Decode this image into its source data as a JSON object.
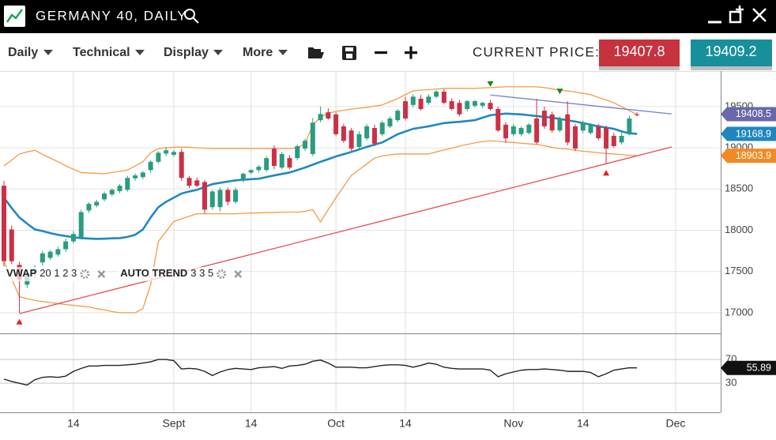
{
  "header": {
    "title": "GERMANY 40, DAILY"
  },
  "toolbar": {
    "menus": [
      "Daily",
      "Technical",
      "Display",
      "More"
    ],
    "price_label": "CURRENT PRICE:",
    "bid": {
      "value": 19407.8,
      "color": "#c6323e"
    },
    "ask": {
      "value": 19409.2,
      "color": "#17909c"
    }
  },
  "chart_data": [
    {
      "type": "candlestick",
      "categories": [
        null,
        null,
        null,
        null,
        null,
        null,
        null,
        null,
        null,
        "14",
        null,
        null,
        null,
        null,
        null,
        null,
        null,
        null,
        null,
        null,
        null,
        null,
        "Sept",
        null,
        null,
        null,
        null,
        null,
        null,
        null,
        null,
        null,
        "14",
        null,
        null,
        null,
        null,
        null,
        null,
        null,
        null,
        null,
        null,
        "Oct",
        null,
        null,
        null,
        null,
        null,
        null,
        null,
        null,
        "14",
        null,
        null,
        null,
        null,
        null,
        null,
        null,
        null,
        null,
        null,
        null,
        null,
        null,
        "Nov",
        null,
        null,
        null,
        null,
        null,
        null,
        null,
        null,
        "14",
        null,
        null,
        null,
        null,
        null,
        null,
        null,
        null,
        null,
        null,
        null,
        "Dec"
      ],
      "open": [
        18540,
        18010,
        17580,
        17340,
        17480,
        17610,
        17665,
        17705,
        17770,
        17865,
        17915,
        18240,
        18300,
        18375,
        18435,
        18475,
        18490,
        18630,
        18645,
        18730,
        18830,
        18930,
        18915,
        18950,
        18635,
        18605,
        18585,
        18280,
        18280,
        18490,
        18345,
        18605,
        18700,
        18730,
        18730,
        18990,
        18760,
        18875,
        18875,
        18990,
        18925,
        19335,
        19430,
        19405,
        19260,
        19210,
        19010,
        19115,
        19240,
        19165,
        19260,
        19335,
        19565,
        19520,
        19595,
        19545,
        19620,
        19680,
        19565,
        19545,
        19470,
        19510,
        19510,
        19545,
        19470,
        19280,
        19165,
        19165,
        19180,
        19355,
        19450,
        19405,
        19210,
        19405,
        19260,
        19210,
        19180,
        19260,
        19240,
        19145,
        19065,
        19180,
        19405,
        null,
        null,
        null,
        null,
        null
      ],
      "high": [
        18600,
        18060,
        17620,
        17530,
        17580,
        17750,
        17760,
        17800,
        17900,
        17990,
        18250,
        18340,
        18370,
        18470,
        18510,
        18560,
        18660,
        18690,
        18720,
        18850,
        18960,
        19010,
        18970,
        18990,
        18660,
        18640,
        18610,
        18490,
        18520,
        18520,
        18520,
        18700,
        18740,
        18790,
        18900,
        19030,
        18950,
        18910,
        19040,
        19110,
        19360,
        19500,
        19480,
        19430,
        19290,
        19240,
        19200,
        19290,
        19280,
        19330,
        19380,
        19470,
        19620,
        19650,
        19640,
        19650,
        19700,
        19710,
        19600,
        19580,
        19580,
        19580,
        19560,
        19580,
        19500,
        19310,
        19290,
        19260,
        19300,
        19595,
        19500,
        19440,
        19380,
        19565,
        19290,
        19330,
        19300,
        19290,
        19270,
        19180,
        19190,
        19390,
        19430,
        null,
        null,
        null,
        null,
        null
      ],
      "low": [
        17560,
        17590,
        17000,
        17300,
        17420,
        17570,
        17640,
        17680,
        17740,
        17840,
        17890,
        18210,
        18280,
        18350,
        18410,
        18450,
        18470,
        18600,
        18620,
        18700,
        18810,
        18900,
        18890,
        18600,
        18510,
        18520,
        18200,
        18250,
        18230,
        18300,
        18320,
        18580,
        18680,
        18700,
        18710,
        18740,
        18740,
        18740,
        18850,
        18960,
        18900,
        19310,
        19340,
        19140,
        19060,
        18960,
        18990,
        19090,
        19020,
        19140,
        19240,
        19310,
        19330,
        19490,
        19450,
        19520,
        19600,
        19530,
        19450,
        19380,
        19440,
        19490,
        19480,
        19450,
        19190,
        19060,
        19140,
        19140,
        19160,
        19040,
        19230,
        19180,
        19190,
        19030,
        18960,
        19180,
        19160,
        19090,
        18810,
        19000,
        19040,
        19150,
        19380,
        null,
        null,
        null,
        null,
        null
      ],
      "close": [
        17625,
        17625,
        17400,
        17480,
        17530,
        17720,
        17740,
        17770,
        17865,
        17955,
        18220,
        18320,
        18345,
        18445,
        18490,
        18540,
        18635,
        18665,
        18700,
        18830,
        18940,
        18970,
        18950,
        18635,
        18540,
        18540,
        18250,
        18470,
        18490,
        18345,
        18490,
        18685,
        18730,
        18770,
        18875,
        18780,
        18925,
        18760,
        19020,
        19085,
        19305,
        19410,
        19355,
        19165,
        19085,
        18990,
        19165,
        19260,
        19050,
        19305,
        19355,
        19450,
        19355,
        19620,
        19470,
        19620,
        19680,
        19545,
        19470,
        19405,
        19565,
        19565,
        19545,
        19470,
        19210,
        19115,
        19260,
        19240,
        19280,
        19065,
        19260,
        19210,
        19355,
        19065,
        18990,
        19305,
        19280,
        19115,
        18990,
        19020,
        19145,
        19355,
        19395,
        null,
        null,
        null,
        null,
        null
      ],
      "up_color": "#2a9c80",
      "down_color": "#cc3046",
      "overlays": [
        {
          "color": "#f59a45",
          "width": 1.3,
          "values": [
            18780,
            18850,
            18925,
            18950,
            18970,
            18920,
            18875,
            18830,
            18780,
            18740,
            18700,
            18695,
            18690,
            18685,
            18700,
            18715,
            18730,
            18780,
            18830,
            18940,
            18990,
            19000,
            19005,
            19010,
            19005,
            19000,
            18995,
            18990,
            18990,
            18990,
            18990,
            18990,
            18990,
            18990,
            18990,
            18990,
            18990,
            18990,
            19000,
            19050,
            19280,
            19370,
            19420,
            19440,
            19455,
            19470,
            19480,
            19490,
            19505,
            19520,
            19560,
            19595,
            19645,
            19690,
            19700,
            19705,
            19712,
            19720,
            19720,
            19720,
            19720,
            19720,
            19725,
            19730,
            19735,
            19740,
            19740,
            19740,
            19740,
            19740,
            19730,
            19715,
            19700,
            19690,
            19675,
            19660,
            19645,
            19610,
            19580,
            19545,
            19500,
            19450,
            19405,
            null,
            null,
            null,
            null,
            null
          ]
        },
        {
          "color": "#f59a45",
          "width": 1.3,
          "values": [
            17625,
            17410,
            17195,
            17170,
            17150,
            17135,
            17125,
            17110,
            17100,
            17090,
            17080,
            17070,
            17050,
            17035,
            17015,
            17000,
            17000,
            17000,
            17050,
            17340,
            17865,
            17985,
            18105,
            18140,
            18170,
            18200,
            18200,
            18200,
            18200,
            18200,
            18200,
            18205,
            18210,
            18210,
            18215,
            18215,
            18220,
            18220,
            18220,
            18230,
            18250,
            18100,
            18250,
            18395,
            18530,
            18665,
            18735,
            18805,
            18875,
            18900,
            18915,
            18925,
            18925,
            18925,
            18925,
            18925,
            18950,
            18975,
            18995,
            19020,
            19040,
            19060,
            19075,
            19085,
            19080,
            19070,
            19065,
            19055,
            19048,
            19040,
            19025,
            19005,
            18990,
            18985,
            18970,
            18958,
            18950,
            18940,
            18932,
            18925,
            18918,
            18910,
            18904,
            null,
            null,
            null,
            null,
            null
          ]
        },
        {
          "color": "#1f88c2",
          "width": 2.6,
          "values": [
            18395,
            18270,
            18155,
            18080,
            18010,
            17990,
            17965,
            17945,
            17930,
            17915,
            17905,
            17900,
            17895,
            17898,
            17902,
            17905,
            17920,
            17945,
            18010,
            18155,
            18280,
            18345,
            18395,
            18445,
            18470,
            18490,
            18525,
            18560,
            18575,
            18590,
            18605,
            18612,
            18620,
            18625,
            18645,
            18665,
            18683,
            18700,
            18730,
            18760,
            18795,
            18830,
            18862,
            18895,
            18922,
            18950,
            18980,
            19010,
            19038,
            19065,
            19115,
            19165,
            19198,
            19230,
            19245,
            19260,
            19280,
            19300,
            19308,
            19315,
            19325,
            19335,
            19365,
            19395,
            19405,
            19415,
            19410,
            19405,
            19395,
            19385,
            19375,
            19365,
            19350,
            19335,
            19318,
            19300,
            19280,
            19260,
            19245,
            19230,
            19200,
            19175,
            19169,
            null,
            null,
            null,
            null,
            null
          ]
        }
      ],
      "trendlines": [
        {
          "x": [
            2,
            86.5
          ],
          "y": [
            16990,
            19010
          ],
          "color": "#ec4a4a"
        },
        {
          "x": [
            63,
            86.5
          ],
          "y": [
            19640,
            19410
          ],
          "color": "#7080d8"
        }
      ],
      "pivots": [
        {
          "x": 63,
          "y": 19740,
          "color": "#178a17",
          "direction": "down"
        },
        {
          "x": 72,
          "y": 19650,
          "color": "#178a17",
          "direction": "down"
        },
        {
          "x": 2,
          "y": 16925,
          "color": "#e02020",
          "direction": "up"
        },
        {
          "x": 78,
          "y": 18730,
          "color": "#e02020",
          "direction": "up"
        }
      ],
      "price_markers": [
        {
          "value": 19408.5,
          "color": "#6a68aa"
        },
        {
          "value": 19168.9,
          "color": "#1f86bf"
        },
        {
          "value": 18903.9,
          "color": "#f28a24"
        }
      ],
      "indicators": [
        {
          "name": "VWAP",
          "params": "20 1 2 3"
        },
        {
          "name": "AUTO TREND",
          "params": "3 3 5"
        }
      ],
      "ylim": [
        16750,
        19930
      ],
      "yticks": [
        17000,
        17500,
        18000,
        18500,
        19000,
        19500
      ],
      "grid": true
    },
    {
      "type": "line",
      "color": "#222222",
      "values": [
        37,
        33,
        30,
        27,
        36,
        40,
        41,
        40,
        42,
        50,
        55,
        59,
        59,
        60,
        60,
        60,
        61,
        62,
        64,
        66,
        70,
        70,
        68,
        54,
        55,
        54,
        50,
        43,
        49,
        53,
        55,
        54,
        53,
        56,
        57,
        58,
        55,
        59,
        60,
        62,
        67,
        69,
        64,
        57,
        57,
        57,
        56,
        56,
        58,
        60,
        61,
        61,
        60,
        57,
        60,
        64,
        62,
        57,
        55,
        54,
        54,
        54,
        54,
        52,
        41,
        46,
        49,
        52,
        53,
        53,
        54,
        53,
        52,
        50,
        50,
        50,
        48,
        41,
        46,
        52,
        54,
        56,
        55.89,
        null,
        null,
        null,
        null,
        null
      ],
      "ylim": [
        -19,
        114
      ],
      "yticks": [
        30,
        70
      ],
      "grid": true,
      "price_marker": {
        "value": 55.89,
        "color": "#111111"
      }
    }
  ]
}
